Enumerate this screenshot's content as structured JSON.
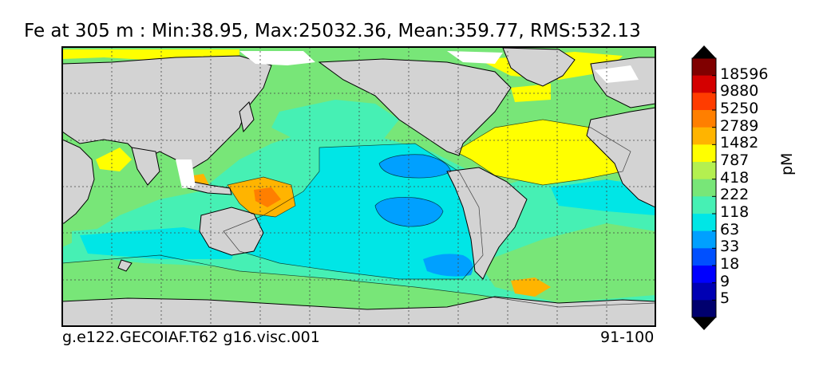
{
  "title": "Fe at 305 m : Min:38.95, Max:25032.36, Mean:359.77, RMS:532.13",
  "footer": {
    "left": "g.e122.GECOIAF.T62 g16.visc.001",
    "right": "91-100"
  },
  "colorbar": {
    "units": "pM",
    "levels": [
      "18596",
      "9880",
      "5250",
      "2789",
      "1482",
      "787",
      "418",
      "222",
      "118",
      "63",
      "33",
      "18",
      "9",
      "5"
    ],
    "colors": [
      "#800000",
      "#d40000",
      "#ff3c00",
      "#ff7f00",
      "#ffb400",
      "#ffff00",
      "#b4f050",
      "#78e678",
      "#46f0b4",
      "#00e6e6",
      "#00a0ff",
      "#0050ff",
      "#0000ff",
      "#0000b4",
      "#00006e"
    ],
    "over_color": "#000000",
    "under_color": "#000000"
  },
  "map_colors": {
    "land": "#d3d3d3",
    "ice": "#ffffff",
    "ocean_base": "#46f0b4",
    "high_coastal": "#ffff00",
    "very_high": "#ffb400",
    "low": "#00e6e6",
    "lowest": "#00a0ff"
  }
}
